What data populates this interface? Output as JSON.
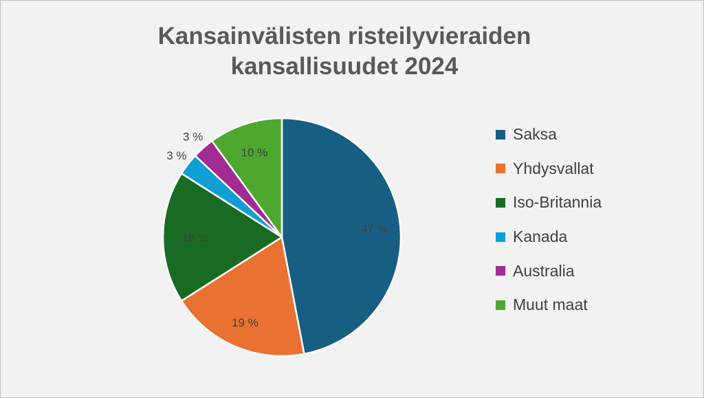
{
  "chart_data": {
    "type": "pie",
    "title_lines": [
      "Kansainvälisten risteilyvieraiden",
      "kansallisuudet 2024"
    ],
    "slices": [
      {
        "name": "Saksa",
        "value": 47,
        "label": "47 %",
        "color": "#175f82"
      },
      {
        "name": "Yhdysvallat",
        "value": 19,
        "label": "19 %",
        "color": "#e97132"
      },
      {
        "name": "Iso-Britannia",
        "value": 18,
        "label": "18 %",
        "color": "#196b24"
      },
      {
        "name": "Kanada",
        "value": 3,
        "label": "3 %",
        "color": "#0f9ed5"
      },
      {
        "name": "Australia",
        "value": 3,
        "label": "3 %",
        "color": "#a02b93"
      },
      {
        "name": "Muut maat",
        "value": 10,
        "label": "10 %",
        "color": "#4ea72e"
      }
    ],
    "legend_position": "right"
  }
}
